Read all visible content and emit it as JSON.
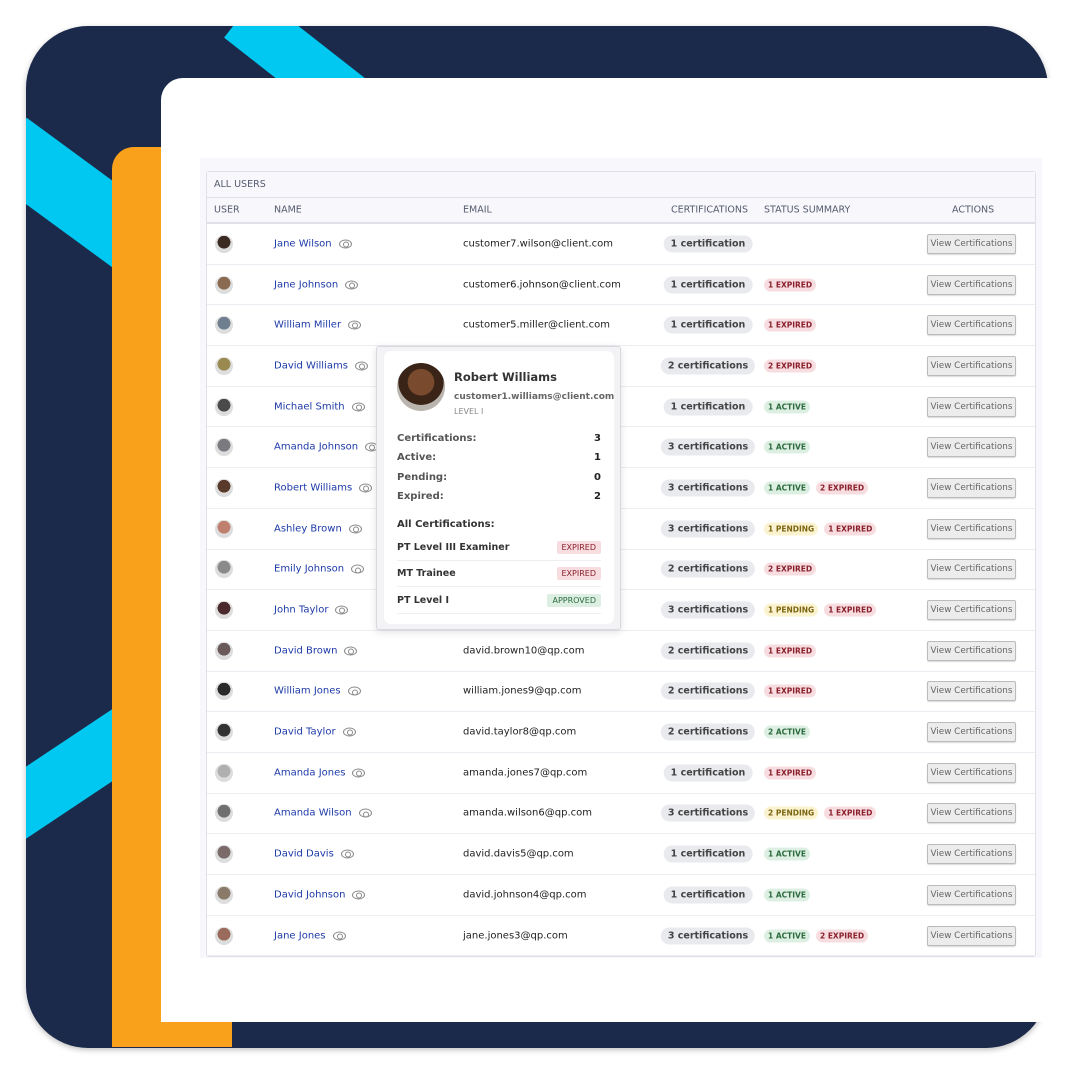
{
  "colors": {
    "navy": "#1b2a4a",
    "cyan": "#00c8f0",
    "orange": "#f9a11b",
    "link": "#1d3aa8"
  },
  "table": {
    "title": "ALL USERS",
    "headers": {
      "user": "USER",
      "name": "NAME",
      "email": "EMAIL",
      "certifications": "CERTIFICATIONS",
      "status": "STATUS SUMMARY",
      "actions": "ACTIONS"
    },
    "action_label": "View Certifications",
    "rows": [
      {
        "name": "Jane Wilson",
        "email": "customer7.wilson@client.com",
        "certs": "1 certification",
        "status": []
      },
      {
        "name": "Jane Johnson",
        "email": "customer6.johnson@client.com",
        "certs": "1 certification",
        "status": [
          {
            "label": "1 EXPIRED",
            "type": "EXPIRED"
          }
        ]
      },
      {
        "name": "William Miller",
        "email": "customer5.miller@client.com",
        "certs": "1 certification",
        "status": [
          {
            "label": "1 EXPIRED",
            "type": "EXPIRED"
          }
        ]
      },
      {
        "name": "David Williams",
        "email": "",
        "certs": "2 certifications",
        "status": [
          {
            "label": "2 EXPIRED",
            "type": "EXPIRED"
          }
        ]
      },
      {
        "name": "Michael Smith",
        "email": "",
        "certs": "1 certification",
        "status": [
          {
            "label": "1 ACTIVE",
            "type": "ACTIVE"
          }
        ]
      },
      {
        "name": "Amanda Johnson",
        "email": "",
        "certs": "3 certifications",
        "status": [
          {
            "label": "1 ACTIVE",
            "type": "ACTIVE"
          }
        ]
      },
      {
        "name": "Robert Williams",
        "email": "",
        "certs": "3 certifications",
        "status": [
          {
            "label": "1 ACTIVE",
            "type": "ACTIVE"
          },
          {
            "label": "2 EXPIRED",
            "type": "EXPIRED"
          }
        ]
      },
      {
        "name": "Ashley Brown",
        "email": "",
        "certs": "3 certifications",
        "status": [
          {
            "label": "1 PENDING",
            "type": "PENDING"
          },
          {
            "label": "1 EXPIRED",
            "type": "EXPIRED"
          }
        ]
      },
      {
        "name": "Emily Johnson",
        "email": "",
        "certs": "2 certifications",
        "status": [
          {
            "label": "2 EXPIRED",
            "type": "EXPIRED"
          }
        ]
      },
      {
        "name": "John Taylor",
        "email": "",
        "certs": "3 certifications",
        "status": [
          {
            "label": "1 PENDING",
            "type": "PENDING"
          },
          {
            "label": "1 EXPIRED",
            "type": "EXPIRED"
          }
        ]
      },
      {
        "name": "David Brown",
        "email": "david.brown10@qp.com",
        "certs": "2 certifications",
        "status": [
          {
            "label": "1 EXPIRED",
            "type": "EXPIRED"
          }
        ]
      },
      {
        "name": "William Jones",
        "email": "william.jones9@qp.com",
        "certs": "2 certifications",
        "status": [
          {
            "label": "1 EXPIRED",
            "type": "EXPIRED"
          }
        ]
      },
      {
        "name": "David Taylor",
        "email": "david.taylor8@qp.com",
        "certs": "2 certifications",
        "status": [
          {
            "label": "2 ACTIVE",
            "type": "ACTIVE"
          }
        ]
      },
      {
        "name": "Amanda Jones",
        "email": "amanda.jones7@qp.com",
        "certs": "1 certification",
        "status": [
          {
            "label": "1 EXPIRED",
            "type": "EXPIRED"
          }
        ]
      },
      {
        "name": "Amanda Wilson",
        "email": "amanda.wilson6@qp.com",
        "certs": "3 certifications",
        "status": [
          {
            "label": "2 PENDING",
            "type": "PENDING"
          },
          {
            "label": "1 EXPIRED",
            "type": "EXPIRED"
          }
        ]
      },
      {
        "name": "David Davis",
        "email": "david.davis5@qp.com",
        "certs": "1 certification",
        "status": [
          {
            "label": "1 ACTIVE",
            "type": "ACTIVE"
          }
        ]
      },
      {
        "name": "David Johnson",
        "email": "david.johnson4@qp.com",
        "certs": "1 certification",
        "status": [
          {
            "label": "1 ACTIVE",
            "type": "ACTIVE"
          }
        ]
      },
      {
        "name": "Jane Jones",
        "email": "jane.jones3@qp.com",
        "certs": "3 certifications",
        "status": [
          {
            "label": "1 ACTIVE",
            "type": "ACTIVE"
          },
          {
            "label": "2 EXPIRED",
            "type": "EXPIRED"
          }
        ]
      }
    ]
  },
  "popover": {
    "name": "Robert Williams",
    "email": "customer1.williams@client.com",
    "level": "LEVEL I",
    "stats": [
      {
        "label": "Certifications:",
        "value": "3"
      },
      {
        "label": "Active:",
        "value": "1"
      },
      {
        "label": "Pending:",
        "value": "0"
      },
      {
        "label": "Expired:",
        "value": "2"
      }
    ],
    "all_label": "All Certifications:",
    "certs": [
      {
        "name": "PT Level III Examiner",
        "status": "EXPIRED"
      },
      {
        "name": "MT Trainee",
        "status": "EXPIRED"
      },
      {
        "name": "PT Level I",
        "status": "APPROVED"
      }
    ]
  }
}
